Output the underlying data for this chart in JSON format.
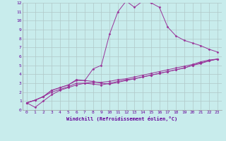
{
  "xlabel": "Windchill (Refroidissement éolien,°C)",
  "background_color": "#c8ecec",
  "grid_color": "#b0c8c8",
  "line_color": "#993399",
  "xlim": [
    -0.5,
    23.5
  ],
  "ylim": [
    0,
    12
  ],
  "xticks": [
    0,
    1,
    2,
    3,
    4,
    5,
    6,
    7,
    8,
    9,
    10,
    11,
    12,
    13,
    14,
    15,
    16,
    17,
    18,
    19,
    20,
    21,
    22,
    23
  ],
  "yticks": [
    0,
    1,
    2,
    3,
    4,
    5,
    6,
    7,
    8,
    9,
    10,
    11,
    12
  ],
  "line1_x": [
    0,
    1,
    2,
    3,
    4,
    5,
    6,
    7,
    8,
    9,
    10,
    11,
    12,
    13,
    14,
    15,
    16,
    17,
    18,
    19,
    20,
    21,
    22,
    23
  ],
  "line1_y": [
    0.8,
    1.1,
    1.5,
    2.2,
    2.5,
    2.8,
    3.4,
    3.3,
    3.2,
    3.0,
    2.9,
    3.1,
    3.3,
    3.5,
    3.7,
    3.9,
    4.1,
    4.3,
    4.5,
    4.7,
    5.0,
    5.3,
    5.5,
    5.7
  ],
  "line2_x": [
    0,
    1,
    2,
    3,
    4,
    5,
    6,
    7,
    8,
    9,
    10,
    11,
    12,
    13,
    14,
    15,
    16,
    17,
    18,
    19,
    20,
    21,
    22,
    23
  ],
  "line2_y": [
    0.8,
    1.1,
    1.5,
    2.2,
    2.5,
    2.8,
    3.3,
    3.3,
    4.6,
    5.0,
    8.5,
    11.0,
    12.2,
    11.5,
    12.2,
    12.0,
    11.5,
    9.3,
    8.3,
    7.8,
    7.5,
    7.2,
    6.8,
    6.5
  ],
  "line3_x": [
    0,
    1,
    2,
    3,
    4,
    5,
    6,
    7,
    8,
    9,
    10,
    11,
    12,
    13,
    14,
    15,
    16,
    17,
    18,
    19,
    20,
    21,
    22,
    23
  ],
  "line3_y": [
    0.8,
    0.3,
    1.0,
    1.7,
    2.2,
    2.5,
    2.8,
    3.0,
    2.9,
    2.8,
    3.0,
    3.2,
    3.4,
    3.5,
    3.7,
    3.9,
    4.1,
    4.3,
    4.5,
    4.7,
    5.0,
    5.2,
    5.5,
    5.7
  ],
  "line4_x": [
    0,
    1,
    2,
    3,
    4,
    5,
    6,
    7,
    8,
    9,
    10,
    11,
    12,
    13,
    14,
    15,
    16,
    17,
    18,
    19,
    20,
    21,
    22,
    23
  ],
  "line4_y": [
    0.8,
    1.1,
    1.5,
    2.0,
    2.3,
    2.6,
    3.0,
    3.0,
    3.1,
    3.1,
    3.2,
    3.4,
    3.5,
    3.7,
    3.9,
    4.1,
    4.3,
    4.5,
    4.7,
    4.9,
    5.1,
    5.4,
    5.6,
    5.7
  ],
  "font_color": "#660099",
  "tick_fontsize": 4.5,
  "label_fontsize": 5.0
}
